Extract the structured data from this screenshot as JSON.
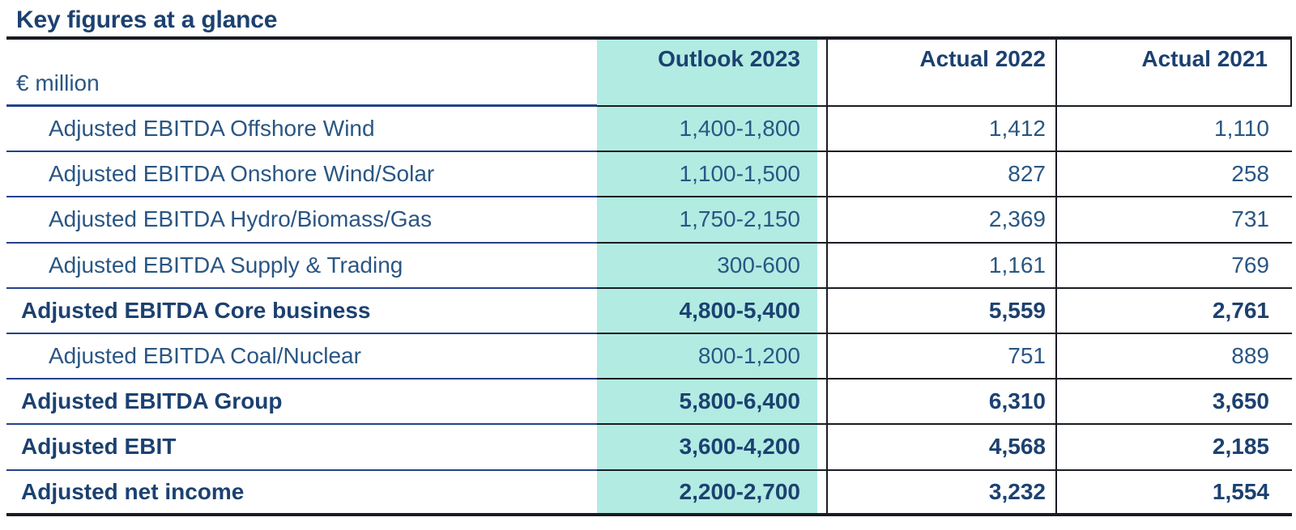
{
  "title": "Key figures at a glance",
  "colors": {
    "highlight": "#b1ebe2",
    "navy_text": "#2a5683",
    "navy_bold": "#1c4170",
    "navy_line": "#24418a",
    "dark_line": "#191c22"
  },
  "chart_data": {
    "type": "table",
    "title": "Key figures at a glance",
    "unit": "€ million",
    "columns": [
      "Outlook 2023",
      "Actual 2022",
      "Actual 2021"
    ],
    "highlighted_column": "Outlook 2023",
    "rows": [
      {
        "label": "Adjusted EBITDA Offshore Wind",
        "bold": false,
        "values": [
          "1,400-1,800",
          "1,412",
          "1,110"
        ]
      },
      {
        "label": "Adjusted EBITDA Onshore Wind/Solar",
        "bold": false,
        "values": [
          "1,100-1,500",
          "827",
          "258"
        ]
      },
      {
        "label": "Adjusted EBITDA Hydro/Biomass/Gas",
        "bold": false,
        "values": [
          "1,750-2,150",
          "2,369",
          "731"
        ]
      },
      {
        "label": "Adjusted EBITDA Supply & Trading",
        "bold": false,
        "values": [
          "300-600",
          "1,161",
          "769"
        ]
      },
      {
        "label": "Adjusted EBITDA Core business",
        "bold": true,
        "values": [
          "4,800-5,400",
          "5,559",
          "2,761"
        ]
      },
      {
        "label": "Adjusted EBITDA Coal/Nuclear",
        "bold": false,
        "values": [
          "800-1,200",
          "751",
          "889"
        ]
      },
      {
        "label": "Adjusted EBITDA Group",
        "bold": true,
        "values": [
          "5,800-6,400",
          "6,310",
          "3,650"
        ]
      },
      {
        "label": "Adjusted EBIT",
        "bold": true,
        "values": [
          "3,600-4,200",
          "4,568",
          "2,185"
        ]
      },
      {
        "label": "Adjusted net income",
        "bold": true,
        "values": [
          "2,200-2,700",
          "3,232",
          "1,554"
        ]
      }
    ]
  }
}
